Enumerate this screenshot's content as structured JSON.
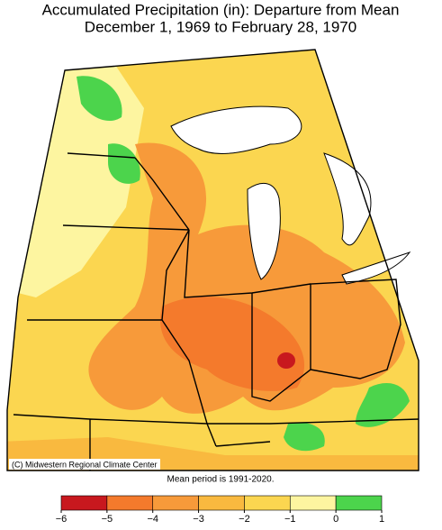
{
  "header": {
    "title": "Accumulated Precipitation (in): Departure from Mean",
    "subtitle": "December 1, 1969 to February 28, 1970"
  },
  "map": {
    "credit": "(C) Midwestern Regional Climate Center",
    "note": "Mean period is 1991-2020."
  },
  "legend": {
    "ticks": [
      {
        "value": -6,
        "label": "−6"
      },
      {
        "value": -5,
        "label": "−5"
      },
      {
        "value": -4,
        "label": "−4"
      },
      {
        "value": -3,
        "label": "−3"
      },
      {
        "value": -2,
        "label": "−2"
      },
      {
        "value": -1,
        "label": "−1"
      },
      0,
      1
    ],
    "colors": [
      "#c8181e",
      "#f47a2c",
      "#f79a3a",
      "#f9b93f",
      "#fbd650",
      "#fdf5a0",
      "#4cd44c"
    ]
  }
}
